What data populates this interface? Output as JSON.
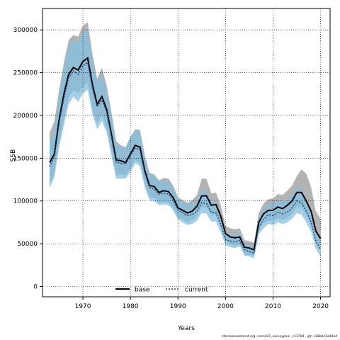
{
  "chart_data": {
    "type": "line",
    "xlabel": "Years",
    "ylabel": "SSB",
    "xlim": [
      1961.5,
      2022
    ],
    "ylim": [
      -12000,
      325000
    ],
    "x_ticks": [
      1970,
      1980,
      1990,
      2000,
      2010,
      2020
    ],
    "y_ticks": [
      0,
      50000,
      100000,
      150000,
      200000,
      250000,
      300000
    ],
    "grid": true,
    "legend": {
      "placement": "bottom-center"
    },
    "years": [
      1963,
      1964,
      1965,
      1966,
      1967,
      1968,
      1969,
      1970,
      1971,
      1972,
      1973,
      1974,
      1975,
      1976,
      1977,
      1978,
      1979,
      1980,
      1981,
      1982,
      1983,
      1984,
      1985,
      1986,
      1987,
      1988,
      1989,
      1990,
      1991,
      1992,
      1993,
      1994,
      1995,
      1996,
      1997,
      1998,
      1999,
      2000,
      2001,
      2002,
      2003,
      2004,
      2005,
      2006,
      2007,
      2008,
      2009,
      2010,
      2011,
      2012,
      2013,
      2014,
      2015,
      2016,
      2017,
      2018,
      2019,
      2020
    ],
    "series": [
      {
        "name": "base",
        "color": "#000000",
        "band_color": "#b3b3b3",
        "values": [
          145000,
          155000,
          195000,
          225000,
          248000,
          256000,
          253000,
          263000,
          267000,
          236000,
          213000,
          222000,
          207000,
          178000,
          148000,
          147000,
          145000,
          155000,
          165000,
          163000,
          136000,
          118000,
          117000,
          110000,
          112000,
          111000,
          104000,
          92000,
          89000,
          86000,
          88000,
          94000,
          106000,
          106000,
          95000,
          96000,
          82000,
          62000,
          58000,
          57000,
          58000,
          46000,
          45000,
          43000,
          75000,
          85000,
          89000,
          89000,
          93000,
          91000,
          95000,
          100000,
          110000,
          110000,
          100000,
          88000,
          65000,
          56000
        ],
        "lower": [
          120000,
          132000,
          168000,
          195000,
          220000,
          230000,
          226000,
          234000,
          238000,
          208000,
          190000,
          200000,
          185000,
          158000,
          130000,
          131000,
          130000,
          138000,
          148000,
          145000,
          120000,
          104000,
          104000,
          98000,
          99000,
          98000,
          92000,
          81000,
          78000,
          75000,
          77000,
          83000,
          93000,
          93000,
          83000,
          84000,
          71000,
          53000,
          49000,
          48000,
          49000,
          38000,
          37000,
          36000,
          65000,
          74000,
          77000,
          77000,
          80000,
          78000,
          81000,
          85000,
          93000,
          93000,
          84000,
          73000,
          53000,
          44000
        ],
        "upper": [
          180000,
          193000,
          230000,
          262000,
          288000,
          294000,
          292000,
          305000,
          309000,
          272000,
          243000,
          256000,
          235000,
          204000,
          170000,
          165000,
          163000,
          175000,
          184000,
          183000,
          154000,
          133000,
          131000,
          124000,
          127000,
          126000,
          118000,
          104000,
          101000,
          98000,
          101000,
          107000,
          126000,
          126000,
          109000,
          110000,
          95000,
          71000,
          68000,
          67000,
          68000,
          54000,
          53000,
          51000,
          86000,
          97000,
          102000,
          103000,
          108000,
          107000,
          112000,
          118000,
          129000,
          137000,
          132000,
          116000,
          88000,
          79000
        ]
      },
      {
        "name": "current",
        "color": "#1f4e79",
        "band_color": "#85bfe0",
        "values": [
          140000,
          152000,
          192000,
          220000,
          244000,
          252000,
          248000,
          258000,
          262000,
          232000,
          210000,
          218000,
          204000,
          175000,
          145000,
          144000,
          143000,
          153000,
          162000,
          160000,
          133000,
          116000,
          114000,
          108000,
          109000,
          108000,
          101000,
          89000,
          86000,
          83000,
          84000,
          88000,
          98000,
          97000,
          87000,
          86000,
          72000,
          55000,
          53000,
          52000,
          54000,
          43000,
          41000,
          39000,
          70000,
          78000,
          84000,
          83000,
          87000,
          85000,
          87000,
          92000,
          100000,
          98000,
          88000,
          75000,
          53000,
          43000
        ],
        "lower": [
          115000,
          128000,
          163000,
          189000,
          213000,
          222000,
          216000,
          226000,
          230000,
          201000,
          184000,
          193000,
          180000,
          153000,
          126000,
          126000,
          126000,
          134000,
          144000,
          141000,
          116000,
          101000,
          100000,
          95000,
          96000,
          95000,
          89000,
          78000,
          75000,
          72000,
          73000,
          77000,
          86000,
          85000,
          76000,
          76000,
          63000,
          48000,
          46000,
          45000,
          47000,
          36000,
          35000,
          33000,
          61000,
          68000,
          73000,
          72000,
          75000,
          73000,
          75000,
          79000,
          86000,
          84000,
          75000,
          64000,
          44000,
          35000
        ],
        "upper": [
          168000,
          181000,
          225000,
          256000,
          282000,
          288000,
          286000,
          297000,
          301000,
          266000,
          238000,
          250000,
          231000,
          201000,
          167000,
          163000,
          162000,
          174000,
          183000,
          182000,
          152000,
          132000,
          130000,
          123000,
          124000,
          123000,
          115000,
          102000,
          99000,
          96000,
          97000,
          101000,
          112000,
          111000,
          100000,
          99000,
          83000,
          64000,
          62000,
          61000,
          63000,
          51000,
          49000,
          47000,
          81000,
          90000,
          97000,
          96000,
          101000,
          99000,
          101000,
          107000,
          116000,
          114000,
          103000,
          88000,
          63000,
          53000
        ]
      }
    ]
  },
  "footer": {
    "text": "stockassessment.org, nscod21_surveyplus , r13704 ,  git: c28bdc2a44ed"
  }
}
